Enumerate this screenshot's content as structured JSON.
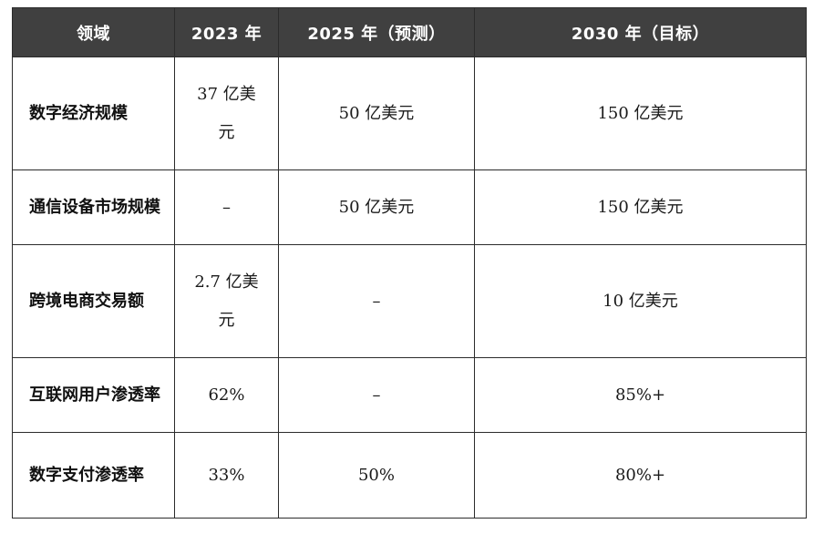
{
  "table": {
    "headers": [
      "领域",
      "2023 年",
      "2025 年（预测）",
      "2030 年（目标）"
    ],
    "rows": [
      {
        "field": "数字经济规模",
        "y2023": "37 亿美元",
        "y2025": "50 亿美元",
        "y2030": "150 亿美元"
      },
      {
        "field": "通信设备市场规模",
        "y2023": "–",
        "y2025": "50 亿美元",
        "y2030": "150 亿美元"
      },
      {
        "field": "跨境电商交易额",
        "y2023": "2.7 亿美元",
        "y2025": "–",
        "y2030": "10 亿美元"
      },
      {
        "field": "互联网用户渗透率",
        "y2023": "62%",
        "y2025": "–",
        "y2030": "85%+"
      },
      {
        "field": "数字支付渗透率",
        "y2023": "33%",
        "y2025": "50%",
        "y2030": "80%+"
      }
    ]
  }
}
